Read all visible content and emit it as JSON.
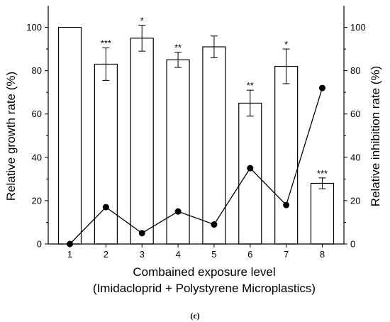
{
  "chart_data": {
    "type": "bar",
    "categories": [
      "1",
      "2",
      "3",
      "4",
      "5",
      "6",
      "7",
      "8"
    ],
    "xlabel": "Combained exposure level",
    "xlabel2": "(Imidacloprid + Polystyrene Microplastics)",
    "ylabel": "Relative growth rate (%)",
    "ylabel_right": "Relative inhibition rate (%)",
    "ylim": [
      0,
      110
    ],
    "yticks": [
      "0",
      "20",
      "40",
      "60",
      "80",
      "100"
    ],
    "ylim_right": [
      0,
      110
    ],
    "yticks_right": [
      "0",
      "20",
      "40",
      "60",
      "80",
      "100"
    ],
    "bar_series": {
      "values": [
        100,
        83,
        95,
        85,
        91,
        65,
        82,
        28
      ],
      "errors": [
        0,
        7.5,
        6,
        3.5,
        5,
        6,
        8,
        2.5
      ],
      "significance": [
        "",
        "***",
        "*",
        "**",
        "",
        "**",
        "*",
        "***"
      ]
    },
    "line_series": {
      "values": [
        0,
        17,
        5,
        15,
        9,
        35,
        18,
        72
      ]
    },
    "caption": "(c)"
  }
}
